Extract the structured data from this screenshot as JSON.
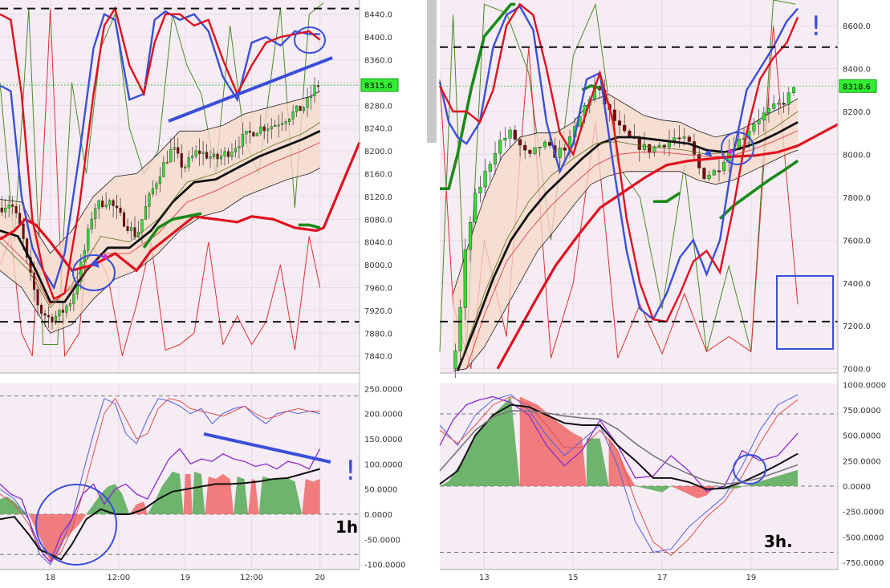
{
  "chart_data": [
    {
      "type": "candlestick",
      "panel": "left-top",
      "timeframe_label": "1h",
      "ylim": [
        7810,
        8465
      ],
      "y_ticks": [
        "8440.0",
        "8400.0",
        "8360.0",
        "8320.0",
        "8280.0",
        "8240.0",
        "8200.0",
        "8160.0",
        "8120.0",
        "8080.0",
        "8040.0",
        "8000.0",
        "7960.0",
        "7920.0",
        "7880.0",
        "7840.0"
      ],
      "x_ticks": [
        "18",
        "12:00",
        "19",
        "12:00",
        "20"
      ],
      "last_price": "8315.6",
      "horizontal_levels": [
        8450,
        7900
      ],
      "colors": {
        "up": "#33dd33",
        "down": "#7a0a0a",
        "blue": "#3a4fd8",
        "red": "#e0101e",
        "green": "#1a8a1a",
        "black": "#111111",
        "band_fill": "#f6d9c8",
        "bg": "#f6ecf4"
      }
    },
    {
      "type": "histogram",
      "panel": "left-bottom",
      "ylim": [
        -110,
        260
      ],
      "y_ticks": [
        "250.0000",
        "200.0000",
        "150.0000",
        "100.0000",
        "50.0000",
        "0.0000",
        "-50.0000",
        "-100.0000"
      ],
      "dashed_levels": [
        235,
        -80
      ]
    },
    {
      "type": "candlestick",
      "panel": "right-top",
      "timeframe_label": "3h.",
      "ylim": [
        6980,
        8720
      ],
      "y_ticks": [
        "8600.0",
        "8400.0",
        "8200.0",
        "8000.0",
        "7800.0",
        "7600.0",
        "7400.0",
        "7200.0",
        "7000.0"
      ],
      "x_ticks": [
        "13",
        "15",
        "17",
        "19"
      ],
      "last_price": "8318.6",
      "horizontal_levels": [
        8500,
        7220
      ]
    },
    {
      "type": "histogram",
      "panel": "right-bottom",
      "ylim": [
        -820,
        1010
      ],
      "y_ticks": [
        "1000.0000",
        "750.0000",
        "500.0000",
        "250.0000",
        "0.0000",
        "-250.0000",
        "-500.0000",
        "-750.0000"
      ],
      "dashed_levels": [
        710,
        -650
      ]
    }
  ],
  "annotations": {
    "exclaim": "!"
  }
}
